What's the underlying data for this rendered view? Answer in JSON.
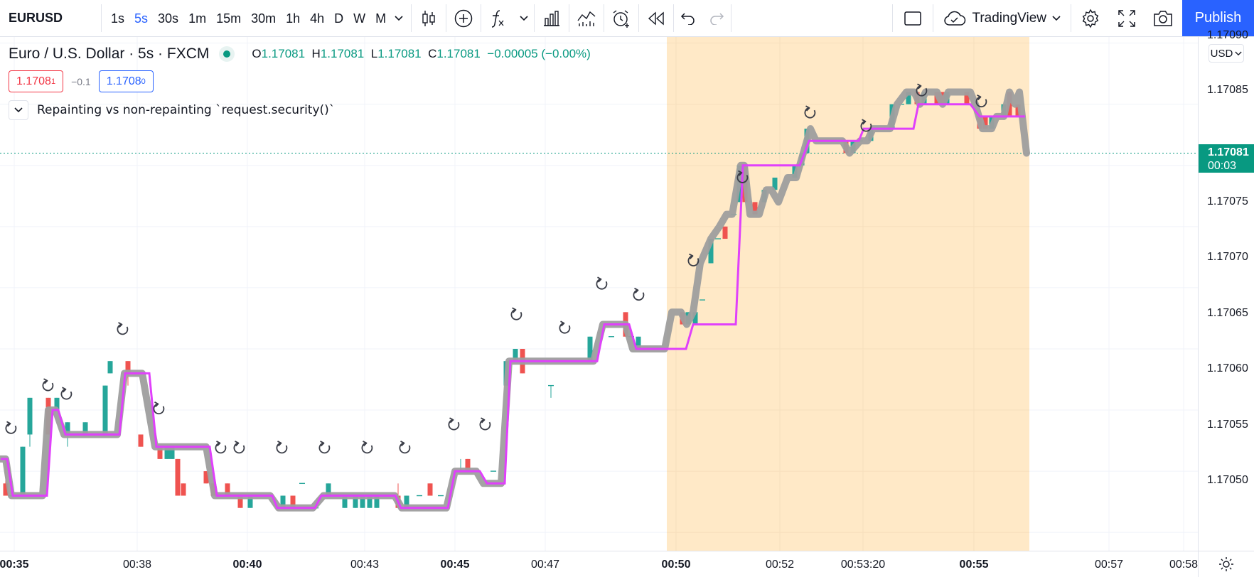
{
  "toolbar": {
    "symbol": "EURUSD",
    "intervals": [
      "1s",
      "5s",
      "30s",
      "1m",
      "15m",
      "30m",
      "1h",
      "4h",
      "D",
      "W",
      "M"
    ],
    "active_interval": "5s",
    "layout_name": "TradingView",
    "publish_label": "Publish",
    "icons": [
      "candles-icon",
      "add-symbol-icon",
      "indicators-icon",
      "bar-chart-icon",
      "templates-icon",
      "alert-icon",
      "replay-icon",
      "undo-icon",
      "redo-icon",
      "rectangle-icon",
      "cloud-icon",
      "settings-icon",
      "fullscreen-icon",
      "camera-icon"
    ]
  },
  "legend": {
    "title": "Euro / U.S. Dollar · 5s · FXCM",
    "open_label": "O",
    "open": "1.17081",
    "high_label": "H",
    "high": "1.17081",
    "low_label": "L",
    "low": "1.17081",
    "close_label": "C",
    "close": "1.17081",
    "change": "−0.00005 (−0.00%)",
    "sell_price": "1.1708",
    "sell_sup": "1",
    "spread": "−0.1",
    "buy_price": "1.1708",
    "buy_sup": "0",
    "study_title": "Repainting vs non-repainting `request.security()`"
  },
  "price_scale": {
    "currency": "USD",
    "labels": [
      "1.17090",
      "1.17085",
      "1.17075",
      "1.17070",
      "1.17065",
      "1.17060",
      "1.17055",
      "1.17050"
    ],
    "current_price": "1.17081",
    "countdown": "00:03"
  },
  "time_scale": {
    "labels": [
      "00:35",
      "00:38",
      "00:40",
      "00:43",
      "00:45",
      "00:47",
      "00:50",
      "00:52",
      "00:53:20",
      "00:55",
      "00:57",
      "00:58"
    ],
    "bold": [
      "00:35",
      "00:40",
      "00:45",
      "00:50",
      "00:55"
    ]
  },
  "colors": {
    "up": "#26a69a",
    "down": "#ef5350",
    "repainting_line": "#9e9e9e",
    "non_repainting_line": "#e040fb",
    "highlight": "#ffe9c7",
    "accent": "#2962ff"
  },
  "chart_data": {
    "type": "line",
    "ylim": [
      1.170485,
      1.170905
    ],
    "series": [
      {
        "points": [
          [
            1,
            1.17056
          ],
          [
            8,
            1.17056
          ],
          [
            16,
            1.17053
          ],
          [
            60,
            1.17053
          ],
          [
            68,
            1.1706
          ],
          [
            78,
            1.1706
          ],
          [
            90,
            1.17058
          ],
          [
            165,
            1.17058
          ],
          [
            175,
            1.17063
          ],
          [
            200,
            1.17063
          ],
          [
            218,
            1.17057
          ],
          [
            290,
            1.17057
          ],
          [
            302,
            1.17053
          ],
          [
            380,
            1.17053
          ],
          [
            392,
            1.17052
          ],
          [
            440,
            1.17052
          ],
          [
            455,
            1.17053
          ],
          [
            555,
            1.17053
          ],
          [
            565,
            1.17052
          ],
          [
            628,
            1.17052
          ],
          [
            640,
            1.17055
          ],
          [
            670,
            1.17055
          ],
          [
            680,
            1.17054
          ],
          [
            705,
            1.17054
          ],
          [
            716,
            1.17064
          ],
          [
            835,
            1.17064
          ],
          [
            848,
            1.17067
          ],
          [
            880,
            1.17067
          ],
          [
            890,
            1.17065
          ],
          [
            935,
            1.17065
          ],
          [
            945,
            1.17068
          ],
          [
            958,
            1.17068
          ],
          [
            966,
            1.17067
          ],
          [
            975,
            1.17068
          ],
          [
            985,
            1.17072
          ],
          [
            1000,
            1.17074
          ],
          [
            1012,
            1.17075
          ],
          [
            1022,
            1.17076
          ],
          [
            1030,
            1.17076
          ],
          [
            1042,
            1.1708
          ],
          [
            1047,
            1.1708
          ],
          [
            1055,
            1.17076
          ],
          [
            1068,
            1.17076
          ],
          [
            1078,
            1.17078
          ],
          [
            1085,
            1.17078
          ],
          [
            1095,
            1.17077
          ],
          [
            1108,
            1.17079
          ],
          [
            1120,
            1.17079
          ],
          [
            1130,
            1.17081
          ],
          [
            1140,
            1.17083
          ],
          [
            1148,
            1.17082
          ],
          [
            1185,
            1.17082
          ],
          [
            1195,
            1.17081
          ],
          [
            1210,
            1.17082
          ],
          [
            1220,
            1.17082
          ],
          [
            1228,
            1.17083
          ],
          [
            1252,
            1.17083
          ],
          [
            1262,
            1.17085
          ],
          [
            1275,
            1.17086
          ],
          [
            1286,
            1.17086
          ],
          [
            1294,
            1.17085
          ],
          [
            1302,
            1.17086
          ],
          [
            1318,
            1.17086
          ],
          [
            1326,
            1.17085
          ],
          [
            1334,
            1.17086
          ],
          [
            1365,
            1.17086
          ],
          [
            1372,
            1.17085
          ],
          [
            1382,
            1.17083
          ],
          [
            1395,
            1.17083
          ],
          [
            1402,
            1.17084
          ],
          [
            1412,
            1.17084
          ],
          [
            1420,
            1.17086
          ],
          [
            1428,
            1.17085
          ],
          [
            1434,
            1.17086
          ],
          [
            1444,
            1.17081
          ]
        ]
      },
      {
        "points": [
          [
            1,
            1.17056
          ],
          [
            10,
            1.17056
          ],
          [
            18,
            1.17053
          ],
          [
            66,
            1.17053
          ],
          [
            74,
            1.1706
          ],
          [
            82,
            1.1706
          ],
          [
            92,
            1.17058
          ],
          [
            168,
            1.17058
          ],
          [
            176,
            1.17063
          ],
          [
            210,
            1.17063
          ],
          [
            220,
            1.17057
          ],
          [
            295,
            1.17057
          ],
          [
            305,
            1.17053
          ],
          [
            383,
            1.17053
          ],
          [
            390,
            1.17052
          ],
          [
            443,
            1.17052
          ],
          [
            452,
            1.17053
          ],
          [
            556,
            1.17053
          ],
          [
            564,
            1.17052
          ],
          [
            630,
            1.17052
          ],
          [
            640,
            1.17055
          ],
          [
            675,
            1.17055
          ],
          [
            685,
            1.17054
          ],
          [
            710,
            1.17054
          ],
          [
            718,
            1.17064
          ],
          [
            840,
            1.17064
          ],
          [
            850,
            1.17067
          ],
          [
            885,
            1.17067
          ],
          [
            895,
            1.17065
          ],
          [
            965,
            1.17065
          ],
          [
            975,
            1.17067
          ],
          [
            1035,
            1.17067
          ],
          [
            1045,
            1.1708
          ],
          [
            1125,
            1.1708
          ],
          [
            1138,
            1.17082
          ],
          [
            1208,
            1.17082
          ],
          [
            1215,
            1.17083
          ],
          [
            1285,
            1.17083
          ],
          [
            1292,
            1.17085
          ],
          [
            1365,
            1.17085
          ],
          [
            1378,
            1.17084
          ],
          [
            1442,
            1.17084
          ]
        ]
      }
    ],
    "candles": [
      [
        8,
        1.17054,
        1.17053,
        1.17056,
        1.17053
      ],
      [
        16,
        1.17053,
        1.17053,
        1.17054,
        1.17053
      ],
      [
        32,
        1.17053,
        1.17057,
        1.17057,
        1.17053
      ],
      [
        42,
        1.17058,
        1.17061,
        1.17061,
        1.17057
      ],
      [
        68,
        1.17061,
        1.17058,
        1.17061,
        1.17058
      ],
      [
        80,
        1.1706,
        1.17061,
        1.17061,
        1.1706
      ],
      [
        95,
        1.17058,
        1.17059,
        1.17059,
        1.17057
      ],
      [
        120,
        1.17058,
        1.17059,
        1.17059,
        1.17058
      ],
      [
        148,
        1.17058,
        1.17062,
        1.17062,
        1.17058
      ],
      [
        155,
        1.17063,
        1.17064,
        1.17064,
        1.17063
      ],
      [
        180,
        1.17064,
        1.17063,
        1.17064,
        1.17062
      ],
      [
        198,
        1.17058,
        1.17057,
        1.17058,
        1.17057
      ],
      [
        225,
        1.17057,
        1.17056,
        1.17057,
        1.17056
      ],
      [
        235,
        1.17056,
        1.17057,
        1.17057,
        1.17056
      ],
      [
        242,
        1.17056,
        1.17057,
        1.17057,
        1.17056
      ],
      [
        250,
        1.17056,
        1.17053,
        1.17056,
        1.17053
      ],
      [
        258,
        1.17054,
        1.17053,
        1.17054,
        1.17053
      ],
      [
        290,
        1.17055,
        1.17054,
        1.17055,
        1.17054
      ],
      [
        300,
        1.17054,
        1.17053,
        1.17054,
        1.17053
      ],
      [
        320,
        1.17054,
        1.17053,
        1.17054,
        1.17053
      ],
      [
        338,
        1.17053,
        1.17052,
        1.17053,
        1.17052
      ],
      [
        352,
        1.17052,
        1.17053,
        1.17053,
        1.17052
      ],
      [
        368,
        1.17053,
        1.17053,
        1.17053,
        1.17053
      ],
      [
        398,
        1.17052,
        1.17053,
        1.17053,
        1.17052
      ],
      [
        412,
        1.17053,
        1.17052,
        1.17053,
        1.17052
      ],
      [
        425,
        1.17054,
        1.17054,
        1.17054,
        1.17054
      ],
      [
        444,
        1.17052,
        1.17052,
        1.17052,
        1.17052
      ],
      [
        462,
        1.17053,
        1.17054,
        1.17054,
        1.17053
      ],
      [
        485,
        1.17052,
        1.17053,
        1.17053,
        1.17052
      ],
      [
        500,
        1.17052,
        1.17053,
        1.17053,
        1.17052
      ],
      [
        510,
        1.17052,
        1.17053,
        1.17053,
        1.17052
      ],
      [
        520,
        1.17052,
        1.17053,
        1.17053,
        1.17052
      ],
      [
        530,
        1.17052,
        1.17053,
        1.17053,
        1.17052
      ],
      [
        560,
        1.17053,
        1.17052,
        1.17054,
        1.17052
      ],
      [
        572,
        1.17052,
        1.17053,
        1.17053,
        1.17052
      ],
      [
        590,
        1.17053,
        1.17053,
        1.17053,
        1.17053
      ],
      [
        605,
        1.17054,
        1.17053,
        1.17054,
        1.17053
      ],
      [
        620,
        1.17053,
        1.17053,
        1.17053,
        1.17053
      ],
      [
        648,
        1.17055,
        1.17055,
        1.17056,
        1.17055
      ],
      [
        658,
        1.17056,
        1.17055,
        1.17056,
        1.17055
      ],
      [
        668,
        1.17055,
        1.17055,
        1.17055,
        1.17055
      ],
      [
        694,
        1.17055,
        1.17055,
        1.17055,
        1.17055
      ],
      [
        712,
        1.17062,
        1.17064,
        1.17064,
        1.17062
      ],
      [
        725,
        1.17064,
        1.17065,
        1.17065,
        1.17064
      ],
      [
        735,
        1.17065,
        1.17063,
        1.17065,
        1.17063
      ],
      [
        775,
        1.17062,
        1.17062,
        1.17062,
        1.17061
      ],
      [
        830,
        1.17064,
        1.17066,
        1.17066,
        1.17064
      ],
      [
        860,
        1.17066,
        1.17066,
        1.17066,
        1.17066
      ],
      [
        880,
        1.17068,
        1.17066,
        1.17068,
        1.17066
      ],
      [
        888,
        1.17066,
        1.17066,
        1.17066,
        1.17066
      ],
      [
        898,
        1.17065,
        1.17066,
        1.17066,
        1.17065
      ],
      [
        960,
        1.17068,
        1.17067,
        1.17068,
        1.17067
      ],
      [
        968,
        1.17067,
        1.17068,
        1.17068,
        1.17067
      ],
      [
        978,
        1.17067,
        1.17068,
        1.17068,
        1.17067
      ],
      [
        988,
        1.17069,
        1.17069,
        1.17069,
        1.17069
      ],
      [
        1000,
        1.17072,
        1.17074,
        1.17074,
        1.17072
      ],
      [
        1010,
        1.17074,
        1.17074,
        1.17074,
        1.17074
      ],
      [
        1020,
        1.17075,
        1.17074,
        1.17075,
        1.17074
      ],
      [
        1032,
        1.17076,
        1.17076,
        1.17076,
        1.17076
      ],
      [
        1040,
        1.17077,
        1.1708,
        1.1708,
        1.17077
      ],
      [
        1048,
        1.1708,
        1.17077,
        1.1708,
        1.17077
      ],
      [
        1062,
        1.17077,
        1.17076,
        1.17077,
        1.17076
      ],
      [
        1075,
        1.17077,
        1.17078,
        1.17078,
        1.17077
      ],
      [
        1090,
        1.17078,
        1.17079,
        1.17079,
        1.17078
      ],
      [
        1118,
        1.17079,
        1.1708,
        1.1708,
        1.17079
      ],
      [
        1128,
        1.1708,
        1.17081,
        1.17081,
        1.1708
      ],
      [
        1135,
        1.17081,
        1.17083,
        1.17083,
        1.17081
      ],
      [
        1190,
        1.17082,
        1.17081,
        1.17082,
        1.17081
      ],
      [
        1200,
        1.17081,
        1.17082,
        1.17082,
        1.17081
      ],
      [
        1210,
        1.17082,
        1.17082,
        1.17082,
        1.17082
      ],
      [
        1225,
        1.17082,
        1.17083,
        1.17083,
        1.17082
      ],
      [
        1255,
        1.17083,
        1.17085,
        1.17085,
        1.17083
      ],
      [
        1268,
        1.17085,
        1.17085,
        1.17085,
        1.17085
      ],
      [
        1278,
        1.17085,
        1.17086,
        1.17086,
        1.17085
      ],
      [
        1290,
        1.17086,
        1.17085,
        1.17086,
        1.17085
      ],
      [
        1300,
        1.17085,
        1.17086,
        1.17086,
        1.17085
      ],
      [
        1318,
        1.17086,
        1.17085,
        1.17086,
        1.17085
      ],
      [
        1325,
        1.17086,
        1.17085,
        1.17086,
        1.17085
      ],
      [
        1332,
        1.17085,
        1.17086,
        1.17086,
        1.17085
      ],
      [
        1360,
        1.17086,
        1.17085,
        1.17086,
        1.17085
      ],
      [
        1378,
        1.17084,
        1.17083,
        1.17084,
        1.17083
      ],
      [
        1386,
        1.17084,
        1.17083,
        1.17084,
        1.17083
      ],
      [
        1395,
        1.17083,
        1.17084,
        1.17084,
        1.17083
      ],
      [
        1405,
        1.17084,
        1.17084,
        1.17084,
        1.17084
      ],
      [
        1412,
        1.17084,
        1.17085,
        1.17085,
        1.17084
      ],
      [
        1420,
        1.17086,
        1.17084,
        1.17086,
        1.17084
      ],
      [
        1432,
        1.17085,
        1.17084,
        1.17085,
        1.17084
      ]
    ],
    "markers": [
      [
        15,
        1.170585
      ],
      [
        67,
        1.17062
      ],
      [
        93,
        1.170613
      ],
      [
        172,
        1.170666
      ],
      [
        223,
        1.170601
      ],
      [
        310,
        1.170569
      ],
      [
        336,
        1.170569
      ],
      [
        396,
        1.170569
      ],
      [
        456,
        1.170569
      ],
      [
        516,
        1.170569
      ],
      [
        569,
        1.170569
      ],
      [
        638,
        1.170588
      ],
      [
        682,
        1.170588
      ],
      [
        726,
        1.170678
      ],
      [
        794,
        1.170667
      ],
      [
        846,
        1.170703
      ],
      [
        898,
        1.170694
      ],
      [
        975,
        1.170722
      ],
      [
        1044,
        1.17079
      ],
      [
        1139,
        1.170843
      ],
      [
        1218,
        1.170832
      ],
      [
        1296,
        1.170861
      ],
      [
        1380,
        1.170852
      ]
    ],
    "highlight_range": [
      938,
      1448
    ],
    "current_price": 1.17081
  }
}
